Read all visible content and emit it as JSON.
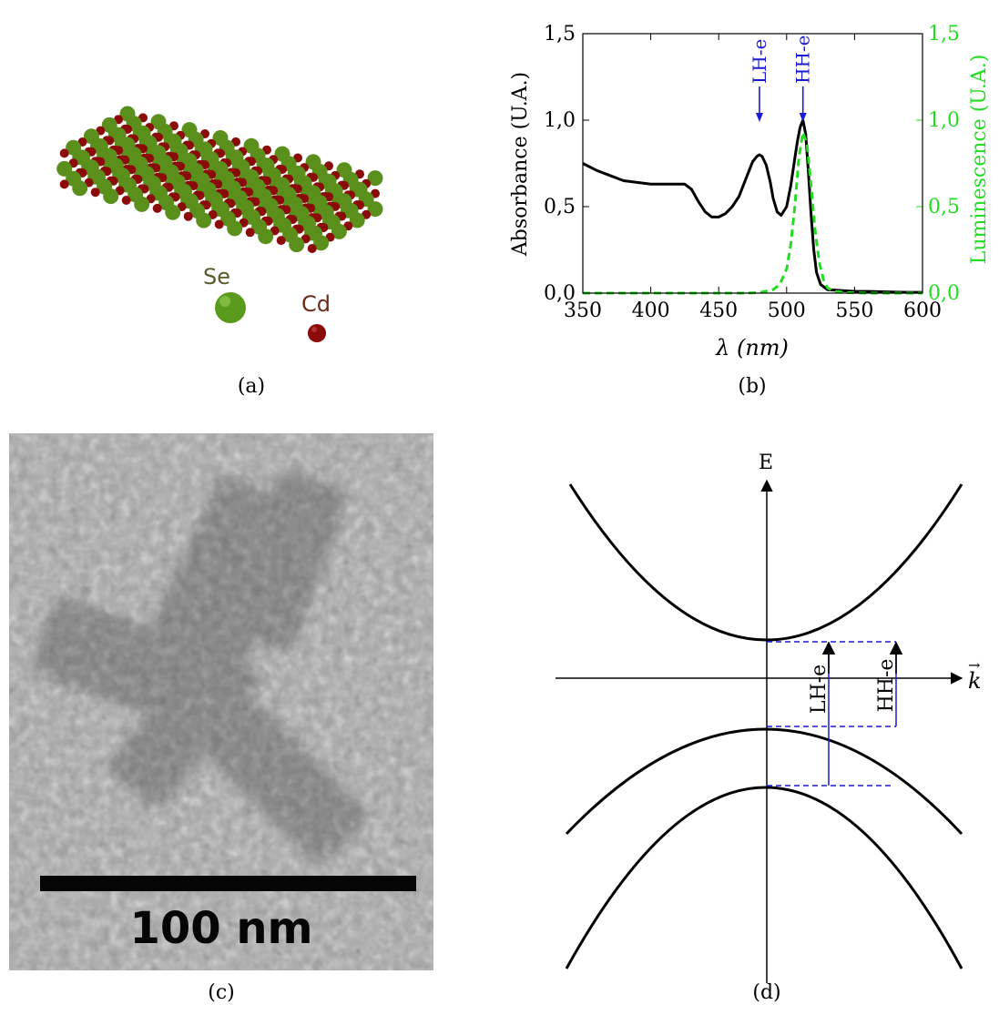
{
  "panels": {
    "a": {
      "caption": "(a)",
      "legend": [
        {
          "label": "Se",
          "color": "#5a8f1c",
          "label_color": "#5a5a2a"
        },
        {
          "label": "Cd",
          "color": "#8b0a0a",
          "label_color": "#6b2a1a"
        }
      ]
    },
    "b": {
      "caption": "(b)"
    },
    "c": {
      "caption": "(c)",
      "scale_bar_label": "100 nm"
    },
    "d": {
      "caption": "(d)",
      "energy_axis_label": "E",
      "k_axis_label": "k",
      "transitions": [
        "LH-e",
        "HH-e"
      ]
    }
  },
  "chart_data": {
    "type": "line",
    "xlabel": "λ (nm)",
    "ylabel": "Absorbance (U.A.)",
    "y2label": "Luminescence (U.A.)",
    "xlim": [
      350,
      600
    ],
    "ylim": [
      0,
      1.5
    ],
    "y2lim": [
      0,
      1.5
    ],
    "x_ticks": [
      "350",
      "400",
      "450",
      "500",
      "550",
      "600"
    ],
    "y_ticks": [
      "0,0",
      "0,5",
      "1,0",
      "1,5"
    ],
    "y2_ticks": [
      "0,0",
      "0,5",
      "1,0",
      "1,5"
    ],
    "grid": false,
    "annotations": [
      {
        "text": "LH-e",
        "x": 480,
        "color": "#1a1ad6"
      },
      {
        "text": "HH-e",
        "x": 512,
        "color": "#1a1ad6"
      }
    ],
    "series": [
      {
        "axis": "left",
        "color": "#000000",
        "style": "solid",
        "x": [
          350,
          360,
          370,
          380,
          390,
          400,
          410,
          420,
          425,
          430,
          435,
          440,
          445,
          450,
          455,
          460,
          465,
          470,
          475,
          478,
          480,
          482,
          485,
          488,
          490,
          493,
          496,
          500,
          503,
          506,
          508,
          510,
          512,
          514,
          516,
          518,
          520,
          522,
          525,
          530,
          540,
          550,
          560,
          570,
          580,
          590,
          600
        ],
        "y": [
          0.75,
          0.71,
          0.68,
          0.65,
          0.64,
          0.63,
          0.63,
          0.63,
          0.63,
          0.6,
          0.53,
          0.47,
          0.44,
          0.44,
          0.46,
          0.5,
          0.56,
          0.66,
          0.76,
          0.79,
          0.8,
          0.79,
          0.74,
          0.64,
          0.55,
          0.47,
          0.45,
          0.5,
          0.62,
          0.78,
          0.88,
          0.96,
          1.0,
          0.92,
          0.7,
          0.45,
          0.25,
          0.12,
          0.05,
          0.02,
          0.015,
          0.01,
          0.01,
          0.008,
          0.006,
          0.005,
          0.005
        ]
      },
      {
        "axis": "right",
        "color": "#22dd22",
        "style": "dashed",
        "x": [
          350,
          400,
          450,
          470,
          480,
          490,
          495,
          500,
          503,
          506,
          509,
          512,
          515,
          518,
          521,
          524,
          527,
          530,
          535,
          545,
          560,
          600
        ],
        "y": [
          0,
          0,
          0,
          0,
          0.003,
          0.02,
          0.05,
          0.14,
          0.28,
          0.5,
          0.78,
          0.93,
          0.86,
          0.62,
          0.36,
          0.18,
          0.08,
          0.03,
          0.01,
          0.003,
          0,
          0
        ]
      }
    ]
  }
}
